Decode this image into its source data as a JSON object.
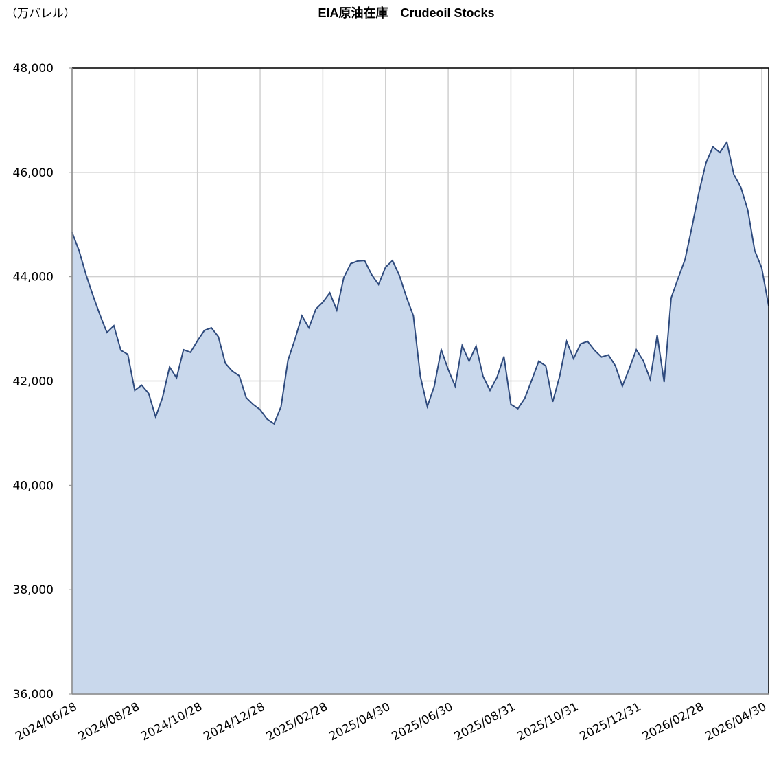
{
  "chart_data": {
    "type": "area",
    "title": "EIA原油在庫　Crudeoil Stocks",
    "y_label": "（万バレル）",
    "categories": [
      "2024/06/28",
      null,
      null,
      null,
      null,
      null,
      null,
      null,
      null,
      "2024/08/28",
      null,
      null,
      null,
      null,
      null,
      null,
      null,
      null,
      "2024/10/28",
      null,
      null,
      null,
      null,
      null,
      null,
      null,
      null,
      "2024/12/28",
      null,
      null,
      null,
      null,
      null,
      null,
      null,
      null,
      "2025/02/28",
      null,
      null,
      null,
      null,
      null,
      null,
      null,
      null,
      "2025/04/30",
      null,
      null,
      null,
      null,
      null,
      null,
      null,
      null,
      "2025/06/30",
      null,
      null,
      null,
      null,
      null,
      null,
      null,
      null,
      "2025/08/31",
      null,
      null,
      null,
      null,
      null,
      null,
      null,
      null,
      "2025/10/31",
      null,
      null,
      null,
      null,
      null,
      null,
      null,
      null,
      "2025/12/31",
      null,
      null,
      null,
      null,
      null,
      null,
      null,
      null,
      "2026/02/28",
      null,
      null,
      null,
      null,
      null,
      null,
      null,
      null,
      "2026/04/30",
      null
    ],
    "series": [
      {
        "name": "Crudeoil Stocks",
        "color": "#2e4a7d",
        "fill": "#c9d8ec",
        "values": [
          44850,
          44500,
          44040,
          43640,
          43270,
          42930,
          43060,
          42590,
          42510,
          41820,
          41920,
          41760,
          41310,
          41690,
          42270,
          42060,
          42600,
          42550,
          42770,
          42970,
          43020,
          42850,
          42340,
          42190,
          42100,
          41680,
          41550,
          41450,
          41270,
          41180,
          41510,
          42400,
          42800,
          43250,
          43020,
          43380,
          43510,
          43690,
          43360,
          43980,
          44250,
          44300,
          44310,
          44040,
          43850,
          44180,
          44310,
          44020,
          43610,
          43250,
          42090,
          41510,
          41900,
          42600,
          42220,
          41900,
          42680,
          42380,
          42670,
          42090,
          41820,
          42070,
          42470,
          41550,
          41470,
          41670,
          42020,
          42380,
          42290,
          41600,
          42090,
          42760,
          42430,
          42710,
          42760,
          42590,
          42460,
          42500,
          42290,
          41900,
          42240,
          42600,
          42390,
          42030,
          42880,
          41980,
          43590,
          43970,
          44330,
          44960,
          45620,
          46180,
          46490,
          46380,
          46580,
          45960,
          45720,
          45280,
          44500,
          44170,
          43440
        ]
      }
    ],
    "ylim": [
      36000,
      48000
    ],
    "yticks": [
      {
        "value": 36000,
        "label": "36,000"
      },
      {
        "value": 38000,
        "label": "38,000"
      },
      {
        "value": 40000,
        "label": "40,000"
      },
      {
        "value": 42000,
        "label": "42,000"
      },
      {
        "value": 44000,
        "label": "44,000"
      },
      {
        "value": 46000,
        "label": "46,000"
      },
      {
        "value": 48000,
        "label": "48,000"
      }
    ],
    "grid": true
  }
}
